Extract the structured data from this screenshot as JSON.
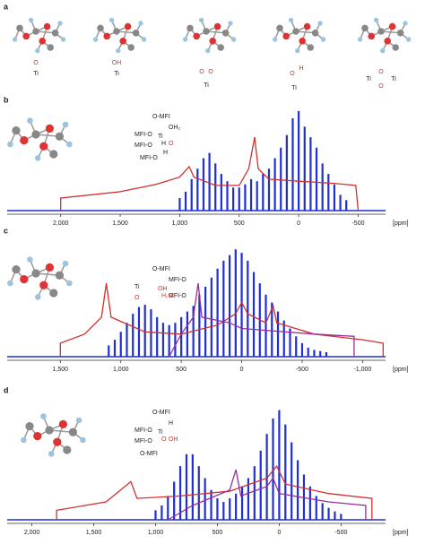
{
  "panel_a": {
    "label": "a",
    "groups": [
      [
        "O",
        "Ti"
      ],
      [
        "OH",
        "Ti"
      ],
      [
        "O",
        "O",
        "Ti"
      ],
      [
        "O",
        "H",
        "Ti"
      ],
      [
        "Ti",
        "O",
        "O",
        "Ti"
      ]
    ]
  },
  "chart_data": [
    {
      "type": "line",
      "panel": "b",
      "xlabel": "[ppm]",
      "structure": [
        "O-MFI",
        "OH₂",
        "MFI-O",
        "Ti",
        "O",
        "MFI-O",
        "H",
        "MFI-O",
        "H"
      ],
      "xlim": [
        2450,
        -730
      ],
      "ylim": [
        0,
        100
      ],
      "xticks": [
        {
          "value": 2000,
          "label": "2,000"
        },
        {
          "value": 1500,
          "label": "1,500"
        },
        {
          "value": 1000,
          "label": "1,000"
        },
        500,
        0,
        -500
      ],
      "series": [
        {
          "color": "#d0312d",
          "x": [
            2000,
            2000,
            1500,
            1200,
            1000,
            920,
            880,
            700,
            500,
            420,
            370,
            340,
            250,
            0,
            -300,
            -480,
            -500
          ],
          "values": [
            0,
            12,
            18,
            25,
            32,
            42,
            32,
            24,
            24,
            40,
            70,
            40,
            30,
            28,
            26,
            24,
            0
          ]
        }
      ],
      "spikes": {
        "color": "#1f2fd6",
        "x": [
          1000,
          950,
          900,
          850,
          800,
          750,
          700,
          650,
          600,
          550,
          500,
          450,
          400,
          350,
          300,
          250,
          200,
          150,
          100,
          50,
          0,
          -50,
          -100,
          -150,
          -200,
          -250,
          -300,
          -350,
          -400
        ],
        "values": [
          12,
          18,
          30,
          40,
          50,
          55,
          45,
          35,
          28,
          22,
          22,
          25,
          30,
          28,
          35,
          40,
          50,
          60,
          72,
          88,
          95,
          80,
          70,
          60,
          45,
          35,
          25,
          15,
          10
        ]
      }
    },
    {
      "type": "line",
      "panel": "c",
      "xlabel": "[ppm]",
      "structure": [
        "O-MFI",
        "MFI-O",
        "Ti",
        "OH",
        "MFI-O",
        "O",
        "H₂O"
      ],
      "xlim": [
        1940,
        -1190
      ],
      "ylim": [
        0,
        100
      ],
      "xticks": [
        {
          "value": 1500,
          "label": "1,500"
        },
        {
          "value": 1000,
          "label": "1,000"
        },
        500,
        0,
        -500,
        {
          "value": -1000,
          "label": "-1,000"
        }
      ],
      "series": [
        {
          "color": "#d0312d",
          "x": [
            1500,
            1500,
            1300,
            1160,
            1120,
            1080,
            800,
            500,
            200,
            50,
            0,
            -50,
            -200,
            -260,
            -290,
            -600,
            -1000,
            -1170,
            -1170
          ],
          "values": [
            0,
            12,
            20,
            35,
            65,
            35,
            22,
            20,
            28,
            38,
            48,
            38,
            30,
            45,
            30,
            20,
            15,
            12,
            0
          ]
        },
        {
          "color": "#9b2d9b",
          "x": [
            600,
            500,
            400,
            360,
            330,
            100,
            0,
            -600,
            -930,
            -930
          ],
          "values": [
            0,
            20,
            35,
            65,
            35,
            30,
            25,
            20,
            18,
            0
          ]
        }
      ],
      "spikes": {
        "color": "#1f2fd6",
        "x": [
          1100,
          1050,
          1000,
          950,
          900,
          850,
          800,
          750,
          700,
          650,
          600,
          550,
          500,
          450,
          400,
          350,
          300,
          250,
          200,
          150,
          100,
          50,
          0,
          -50,
          -100,
          -150,
          -200,
          -250,
          -300,
          -350,
          -400,
          -450,
          -500,
          -550,
          -600,
          -650,
          -700
        ],
        "values": [
          10,
          15,
          22,
          30,
          38,
          44,
          46,
          42,
          35,
          30,
          28,
          30,
          35,
          40,
          45,
          55,
          62,
          70,
          78,
          85,
          90,
          95,
          92,
          85,
          75,
          65,
          55,
          48,
          40,
          32,
          25,
          18,
          12,
          8,
          6,
          5,
          4
        ]
      }
    },
    {
      "type": "line",
      "panel": "d",
      "xlabel": "[ppm]",
      "structure": [
        "O-MFI",
        "H",
        "MFI-O",
        "Ti",
        "OH",
        "MFI-O",
        "O",
        "O-MFI"
      ],
      "xlim": [
        2200,
        -860
      ],
      "ylim": [
        0,
        100
      ],
      "xticks": [
        {
          "value": 2000,
          "label": "2,000"
        },
        {
          "value": 1500,
          "label": "1,500"
        },
        {
          "value": 1000,
          "label": "1,000"
        },
        500,
        0,
        -500
      ],
      "series": [
        {
          "color": "#d0312d",
          "x": [
            1800,
            1800,
            1400,
            1200,
            1150,
            800,
            400,
            100,
            20,
            -50,
            -400,
            -750,
            -750
          ],
          "values": [
            0,
            8,
            15,
            32,
            18,
            20,
            24,
            35,
            45,
            30,
            22,
            18,
            0
          ]
        },
        {
          "color": "#9b2d9b",
          "x": [
            900,
            700,
            400,
            350,
            310,
            100,
            50,
            0,
            -400,
            -700,
            -700
          ],
          "values": [
            0,
            12,
            25,
            42,
            20,
            28,
            35,
            22,
            15,
            12,
            0
          ]
        }
      ],
      "spikes": {
        "color": "#1f2fd6",
        "x": [
          1000,
          950,
          900,
          850,
          800,
          750,
          700,
          650,
          600,
          550,
          500,
          450,
          400,
          350,
          300,
          250,
          200,
          150,
          100,
          50,
          0,
          -50,
          -100,
          -150,
          -200,
          -250,
          -300,
          -350,
          -400,
          -450,
          -500
        ],
        "values": [
          8,
          12,
          20,
          32,
          45,
          55,
          55,
          45,
          35,
          25,
          18,
          15,
          18,
          22,
          28,
          35,
          45,
          58,
          72,
          85,
          92,
          80,
          65,
          50,
          38,
          28,
          20,
          14,
          10,
          7,
          5
        ]
      }
    }
  ]
}
